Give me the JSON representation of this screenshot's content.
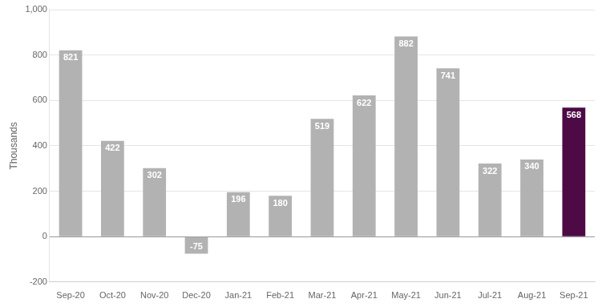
{
  "chart_data": {
    "type": "bar",
    "ylabel": "Thousands",
    "categories": [
      "Sep-20",
      "Oct-20",
      "Nov-20",
      "Dec-20",
      "Jan-21",
      "Feb-21",
      "Mar-21",
      "Apr-21",
      "May-21",
      "Jun-21",
      "Jul-21",
      "Aug-21",
      "Sep-21"
    ],
    "values": [
      821,
      422,
      302,
      -75,
      196,
      180,
      519,
      622,
      882,
      741,
      322,
      340,
      568
    ],
    "colors": [
      "#b2b2b2",
      "#b2b2b2",
      "#b2b2b2",
      "#b2b2b2",
      "#b2b2b2",
      "#b2b2b2",
      "#b2b2b2",
      "#b2b2b2",
      "#b2b2b2",
      "#b2b2b2",
      "#b2b2b2",
      "#b2b2b2",
      "#4d0a45"
    ],
    "ylim": [
      -200,
      1000
    ],
    "yticks": [
      -200,
      0,
      200,
      400,
      600,
      800,
      {
        "value": 1000,
        "label": "1,000"
      }
    ],
    "grid": true,
    "data_labels": true
  }
}
